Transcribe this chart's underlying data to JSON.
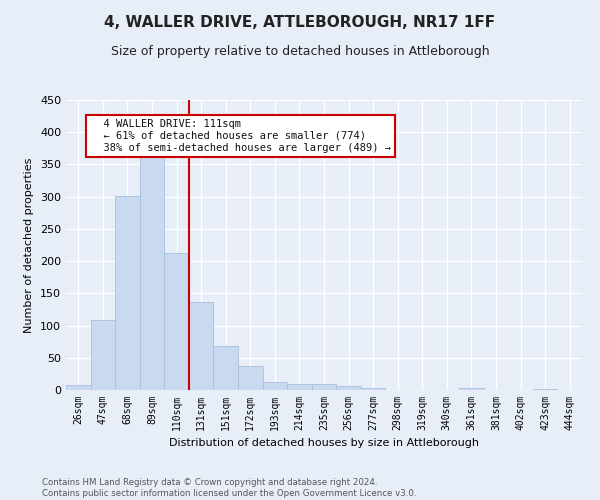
{
  "title": "4, WALLER DRIVE, ATTLEBOROUGH, NR17 1FF",
  "subtitle": "Size of property relative to detached houses in Attleborough",
  "xlabel": "Distribution of detached houses by size in Attleborough",
  "ylabel": "Number of detached properties",
  "categories": [
    "26sqm",
    "47sqm",
    "68sqm",
    "89sqm",
    "110sqm",
    "131sqm",
    "151sqm",
    "172sqm",
    "193sqm",
    "214sqm",
    "235sqm",
    "256sqm",
    "277sqm",
    "298sqm",
    "319sqm",
    "340sqm",
    "361sqm",
    "381sqm",
    "402sqm",
    "423sqm",
    "444sqm"
  ],
  "values": [
    7,
    108,
    301,
    362,
    213,
    136,
    69,
    38,
    13,
    10,
    10,
    6,
    3,
    0,
    0,
    0,
    3,
    0,
    0,
    2,
    0
  ],
  "bar_color": "#c8d9f0",
  "bar_edgecolor": "#a8c0de",
  "marker_index": 4,
  "marker_color": "#cc0000",
  "annotation_text": "  4 WALLER DRIVE: 111sqm\n  ← 61% of detached houses are smaller (774)\n  38% of semi-detached houses are larger (489) →",
  "annotation_box_facecolor": "#ffffff",
  "annotation_box_edgecolor": "#cc0000",
  "ylim": [
    0,
    450
  ],
  "yticks": [
    0,
    50,
    100,
    150,
    200,
    250,
    300,
    350,
    400,
    450
  ],
  "footer1": "Contains HM Land Registry data © Crown copyright and database right 2024.",
  "footer2": "Contains public sector information licensed under the Open Government Licence v3.0.",
  "bg_color": "#e8eef8",
  "grid_color": "#ffffff",
  "title_fontsize": 11,
  "subtitle_fontsize": 9,
  "ylabel_fontsize": 8,
  "xlabel_fontsize": 8,
  "tick_fontsize": 7
}
